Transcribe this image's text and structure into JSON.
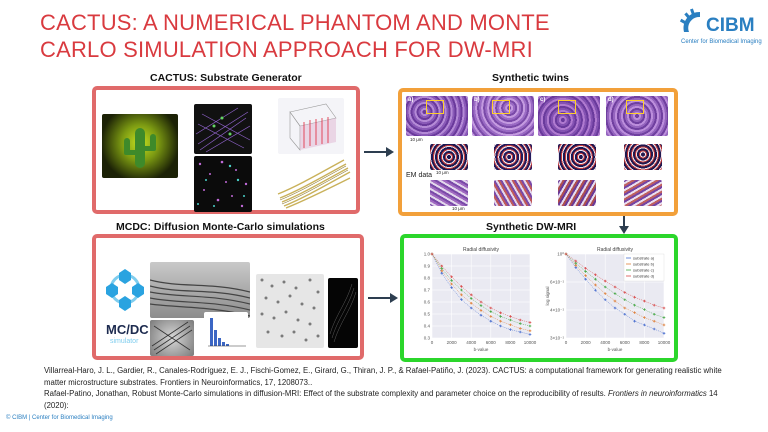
{
  "title": "CACTUS: A NUMERICAL PHANTOM AND MONTE CARLO SIMULATION APPROACH FOR DW-MRI",
  "logo": {
    "name": "CIBM",
    "tagline": "Center for Biomedical Imaging"
  },
  "sections": {
    "substrate": "CACTUS: Substrate Generator",
    "twins": "Synthetic twins",
    "mcdc": "MCDC: Diffusion Monte-Carlo simulations",
    "dwmri": "Synthetic DW-MRI"
  },
  "twins_labels": {
    "a": "a)",
    "b": "b)",
    "c": "c)",
    "d": "d)",
    "em": "EM data",
    "scale1": "10 μm",
    "scale2": "10 μm",
    "scale3": "10 μm"
  },
  "mcdc_logo": {
    "line1": "MC/DC",
    "line2": "simulator"
  },
  "references": {
    "ref1": "Villarreal-Haro, J. L., Gardier, R., Canales-Rodríguez, E. J., Fischi-Gomez, E., Girard, G., Thiran, J. P., & Rafael-Patiño, J. (2023). CACTUS: a computational framework for generating realistic white matter microstructure substrates. Frontiers in Neuroinformatics, 17, 1208073..",
    "ref2_main": "Rafael-Patino, Jonathan, Robust Monte-Carlo simulations in diffusion-MRI: Effect of the substrate complexity and parameter choice on the reproducibility of results. ",
    "ref2_journal": "Frontiers in neuroinformatics",
    "ref2_end": " 14 (2020):"
  },
  "footer": "© CIBM | Center for Biomedical Imaging",
  "colors": {
    "title": "#d93a3f",
    "red_panel": "#e06a6a",
    "orange_panel": "#f2a03a",
    "green_panel": "#2bd62b",
    "cibm_blue": "#2a7fc1"
  },
  "chart_data": [
    {
      "type": "line",
      "title": "Radial diffusivity",
      "xlabel": "b-value",
      "ylabel": "",
      "xlim": [
        0,
        10000
      ],
      "ylim": [
        0.3,
        1.0
      ],
      "x": [
        0,
        1000,
        2000,
        3000,
        4000,
        5000,
        6000,
        7000,
        8000,
        9000,
        10000
      ],
      "yticks": [
        "1.0",
        "0.9",
        "0.8",
        "0.7",
        "0.6",
        "0.5",
        "0.4",
        "0.3"
      ],
      "xticks": [
        "0",
        "2000",
        "4000",
        "6000",
        "8000",
        "10000"
      ],
      "series": [
        {
          "color": "#4a6fd0",
          "values": [
            1.0,
            0.84,
            0.72,
            0.62,
            0.55,
            0.49,
            0.44,
            0.4,
            0.37,
            0.35,
            0.33
          ]
        },
        {
          "color": "#e0803a",
          "values": [
            1.0,
            0.86,
            0.75,
            0.66,
            0.59,
            0.53,
            0.48,
            0.44,
            0.41,
            0.38,
            0.36
          ]
        },
        {
          "color": "#45a845",
          "values": [
            1.0,
            0.88,
            0.78,
            0.7,
            0.63,
            0.57,
            0.52,
            0.48,
            0.45,
            0.42,
            0.4
          ]
        },
        {
          "color": "#d94a4a",
          "values": [
            1.0,
            0.9,
            0.81,
            0.73,
            0.66,
            0.6,
            0.55,
            0.51,
            0.48,
            0.45,
            0.43
          ]
        }
      ]
    },
    {
      "type": "line",
      "title": "Radial diffusivity",
      "xlabel": "b-value",
      "ylabel": "log signal",
      "xlim": [
        0,
        10000
      ],
      "ylim": [
        0.25,
        1.0
      ],
      "log_y": true,
      "x": [
        0,
        1000,
        2000,
        3000,
        4000,
        5000,
        6000,
        7000,
        8000,
        9000,
        10000
      ],
      "yticks": [
        "10⁰",
        "6×10⁻¹",
        "4×10⁻¹",
        "3×10⁻¹"
      ],
      "xticks": [
        "0",
        "2000",
        "4000",
        "6000",
        "8000",
        "10000"
      ],
      "series": [
        {
          "name": "substrate a)",
          "color": "#4a6fd0",
          "values": [
            1.0,
            0.8,
            0.66,
            0.55,
            0.47,
            0.41,
            0.37,
            0.33,
            0.31,
            0.29,
            0.27
          ]
        },
        {
          "name": "substrate b)",
          "color": "#e0803a",
          "values": [
            1.0,
            0.83,
            0.7,
            0.6,
            0.52,
            0.46,
            0.41,
            0.38,
            0.35,
            0.33,
            0.31
          ]
        },
        {
          "name": "substrate c)",
          "color": "#45a845",
          "values": [
            1.0,
            0.86,
            0.75,
            0.66,
            0.58,
            0.52,
            0.47,
            0.43,
            0.4,
            0.37,
            0.35
          ]
        },
        {
          "name": "substrate d)",
          "color": "#d94a4a",
          "values": [
            1.0,
            0.89,
            0.79,
            0.71,
            0.64,
            0.58,
            0.53,
            0.49,
            0.46,
            0.43,
            0.41
          ]
        }
      ]
    }
  ]
}
